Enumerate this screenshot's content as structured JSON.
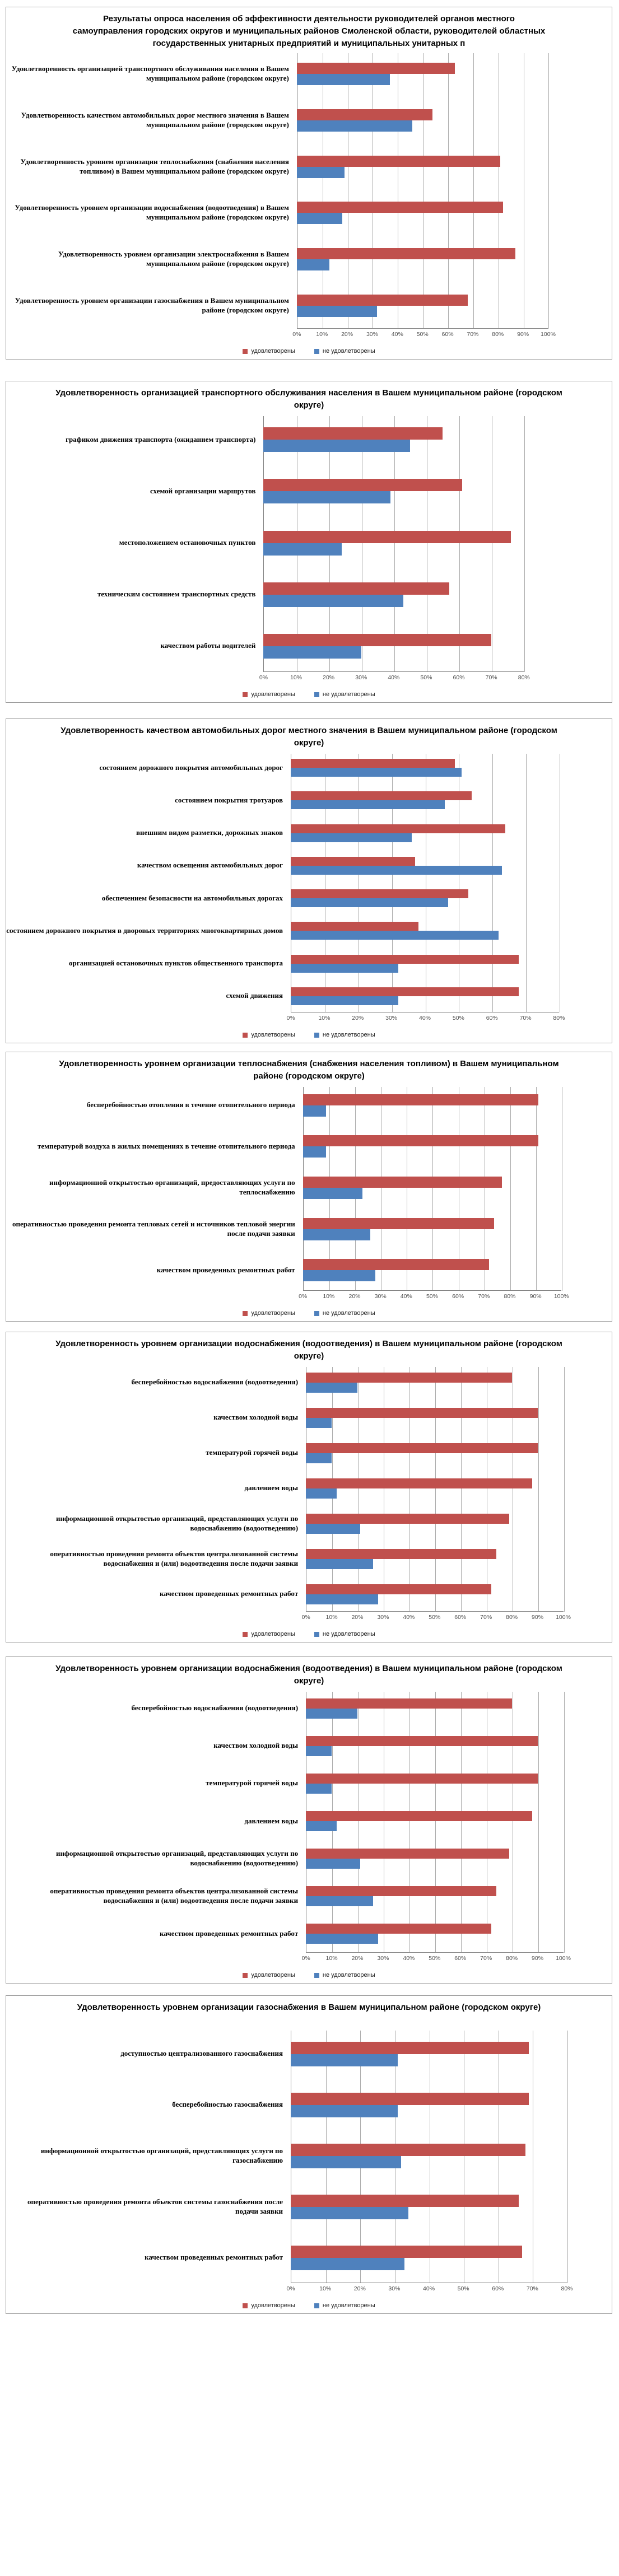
{
  "colors": {
    "satisfied": "#C0504D",
    "not_satisfied": "#4F81BD",
    "gridline": "#ABABAB",
    "axis": "#808080",
    "box_border": "#9A9A9A"
  },
  "chart_data": [
    {
      "type": "bar",
      "orientation": "horizontal",
      "title": "Результаты опроса населения об эффективности деятельности руководителей органов местного самоуправления городских округов и муниципальных районов Смоленской области, руководителей областных государственных унитарных предприятий и муниципальных унитарных п",
      "categories": [
        "Удовлетворенность  организацией транспортного  обслуживания населения в Вашем муниципальном районе (городском округе)",
        "Удовлетворенность  качеством автомобильных дорог местного значения в Вашем муниципальном районе (городском округе)",
        "Удовлетворенность уровнем организации теплоснабжения (снабжения населения топливом) в Вашем муниципальном районе (городском округе)",
        "Удовлетворенность уровнем организации водоснабжения (водоотведения) в Вашем муниципальном районе (городском округе)",
        "Удовлетворенность уровнем организации электроснабжения в Вашем муниципальном районе (городском округе)",
        "Удовлетворенность уровнем организации газоснабжения в Вашем муниципальном районе (городском округе)"
      ],
      "series": [
        {
          "name": "удовлетворены",
          "color": "#C0504D",
          "values": [
            63,
            54,
            81,
            82,
            87,
            68
          ]
        },
        {
          "name": "не удовлетворены",
          "color": "#4F81BD",
          "values": [
            37,
            46,
            19,
            18,
            13,
            32
          ]
        }
      ],
      "legend": [
        "удовлетворены",
        "не удовлетворены"
      ],
      "legend_position": "bottom",
      "grid": true,
      "xlim": [
        0,
        100
      ],
      "tick_labels": [
        "0%",
        "10%",
        "20%",
        "30%",
        "40%",
        "50%",
        "60%",
        "70%",
        "80%",
        "90%",
        "100%"
      ]
    },
    {
      "type": "bar",
      "orientation": "horizontal",
      "title": "Удовлетворенность организацией транспортного обслуживания населения в Вашем муниципальном районе (городском округе)",
      "categories": [
        "графиком движения транспорта (ожиданием транспорта)",
        "схемой организации маршрутов",
        "местоположением остановочных пунктов",
        "техническим состоянием транспортных средств",
        "качеством работы водителей"
      ],
      "series": [
        {
          "name": "удовлетворены",
          "color": "#C0504D",
          "values": [
            55,
            61,
            76,
            57,
            70
          ]
        },
        {
          "name": "не удовлетворены",
          "color": "#4F81BD",
          "values": [
            45,
            39,
            24,
            43,
            30
          ]
        }
      ],
      "legend": [
        "удовлетворены",
        "не удовлетворены"
      ],
      "legend_position": "bottom",
      "grid": true,
      "xlim": [
        0,
        80
      ],
      "tick_labels": [
        "0%",
        "10%",
        "20%",
        "30%",
        "40%",
        "50%",
        "60%",
        "70%",
        "80%"
      ]
    },
    {
      "type": "bar",
      "orientation": "horizontal",
      "title": "Удовлетворенность качеством автомобильных дорог местного значения в Вашем муниципальном районе (городском округе)",
      "categories": [
        "состоянием дорожного покрытия  автомобильных дорог",
        "состоянием покрытия  тротуаров",
        "внешним  видом разметки, дорожных  знаков",
        "качеством освещения автомобильных  дорог",
        "обеспечением безопасности на автомобильных  дорогах",
        "состоянием дорожного покрытия  в дворовых  территориях многоквартирных  домов",
        "организацией остановочных  пунктов  общественного транспорта",
        "схемой движения"
      ],
      "series": [
        {
          "name": "удовлетворены",
          "color": "#C0504D",
          "values": [
            49,
            54,
            64,
            37,
            53,
            38,
            68,
            68
          ]
        },
        {
          "name": "не удовлетворены",
          "color": "#4F81BD",
          "values": [
            51,
            46,
            36,
            63,
            47,
            62,
            32,
            32
          ]
        }
      ],
      "legend": [
        "удовлетворены",
        "не удовлетворены"
      ],
      "legend_position": "bottom",
      "grid": true,
      "xlim": [
        0,
        80
      ],
      "tick_labels": [
        "0%",
        "10%",
        "20%",
        "30%",
        "40%",
        "50%",
        "60%",
        "70%",
        "80%"
      ]
    },
    {
      "type": "bar",
      "orientation": "horizontal",
      "title": "Удовлетворенность уровнем организации теплоснабжения (снабжения населения топливом) в Вашем муниципальном районе (городском округе)",
      "categories": [
        "бесперебойностью отопления в течение отопительного периода",
        "температурой  воздуха в жилых  помещениях в течение отопительного периода",
        "информационной открытостью  организаций, предоставляющих услуги по теплоснабжению",
        "оперативностью  проведения ремонта тепловых  сетей и источников тепловой энергии после подачи заявки",
        "качеством проведенных ремонтных  работ"
      ],
      "series": [
        {
          "name": "удовлетворены",
          "color": "#C0504D",
          "values": [
            91,
            91,
            77,
            74,
            72
          ]
        },
        {
          "name": "не удовлетворены",
          "color": "#4F81BD",
          "values": [
            9,
            9,
            23,
            26,
            28
          ]
        }
      ],
      "legend": [
        "удовлетворены",
        "не удовлетворены"
      ],
      "legend_position": "bottom",
      "grid": true,
      "xlim": [
        0,
        100
      ],
      "tick_labels": [
        "0%",
        "10%",
        "20%",
        "30%",
        "40%",
        "50%",
        "60%",
        "70%",
        "80%",
        "90%",
        "100%"
      ]
    },
    {
      "type": "bar",
      "orientation": "horizontal",
      "title": "Удовлетворенность уровнем организации водоснабжения (водоотведения) в Вашем муниципальном районе (городском округе)",
      "categories": [
        "бесперебойностью водоснабжения (водоотведения)",
        "качеством холодной воды",
        "температурой  горячей воды",
        "давлением воды",
        "информационной открытостью  организаций, представляющих услуги по водоснабжению (водоотведению)",
        "оперативностью  проведения ремонта объектов централизованной системы водоснабжения и (или) водоотведения после подачи заявки",
        "качеством проведенных ремонтных  работ"
      ],
      "series": [
        {
          "name": "удовлетворены",
          "color": "#C0504D",
          "values": [
            80,
            90,
            90,
            88,
            79,
            74,
            72
          ]
        },
        {
          "name": "не удовлетворены",
          "color": "#4F81BD",
          "values": [
            20,
            10,
            10,
            12,
            21,
            26,
            28
          ]
        }
      ],
      "legend": [
        "удовлетворены",
        "не удовлетворены"
      ],
      "legend_position": "bottom",
      "grid": true,
      "xlim": [
        0,
        100
      ],
      "tick_labels": [
        "0%",
        "10%",
        "20%",
        "30%",
        "40%",
        "50%",
        "60%",
        "70%",
        "80%",
        "90%",
        "100%"
      ]
    },
    {
      "type": "bar",
      "orientation": "horizontal",
      "title": "Удовлетворенность уровнем организации водоснабжения (водоотведения) в Вашем муниципальном районе (городском округе)",
      "categories": [
        "бесперебойностью водоснабжения (водоотведения)",
        "качеством холодной воды",
        "температурой  горячей воды",
        "давлением воды",
        "информационной открытостью  организаций, представляющих услуги по водоснабжению (водоотведению)",
        "оперативностью  проведения ремонта объектов централизованной системы водоснабжения и (или) водоотведения после подачи заявки",
        "качеством проведенных ремонтных  работ"
      ],
      "series": [
        {
          "name": "удовлетворены",
          "color": "#C0504D",
          "values": [
            80,
            90,
            90,
            88,
            79,
            74,
            72
          ]
        },
        {
          "name": "не удовлетворены",
          "color": "#4F81BD",
          "values": [
            20,
            10,
            10,
            12,
            21,
            26,
            28
          ]
        }
      ],
      "legend": [
        "удовлетворены",
        "не удовлетворены"
      ],
      "legend_position": "bottom",
      "grid": true,
      "xlim": [
        0,
        100
      ],
      "tick_labels": [
        "0%",
        "10%",
        "20%",
        "30%",
        "40%",
        "50%",
        "60%",
        "70%",
        "80%",
        "90%",
        "100%"
      ]
    },
    {
      "type": "bar",
      "orientation": "horizontal",
      "title": "Удовлетворенность уровнем организации газоснабжения в Вашем муниципальном районе (городском округе)",
      "categories": [
        "доступностью централизованного  газоснабжения",
        "бесперебойностью газоснабжения",
        "информационной открытостью  организаций, представляющих услуги по газоснабжению",
        "оперативностью  проведения ремонта объектов системы газоснабжения после подачи заявки",
        "качеством проведенных ремонтных  работ"
      ],
      "series": [
        {
          "name": "удовлетворены",
          "color": "#C0504D",
          "values": [
            69,
            69,
            68,
            66,
            67
          ]
        },
        {
          "name": "не удовлетворены",
          "color": "#4F81BD",
          "values": [
            31,
            31,
            32,
            34,
            33
          ]
        }
      ],
      "legend": [
        "удовлетворены",
        "не удовлетворены"
      ],
      "legend_position": "bottom",
      "grid": true,
      "xlim": [
        0,
        80
      ],
      "tick_labels": [
        "0%",
        "10%",
        "20%",
        "30%",
        "40%",
        "50%",
        "60%",
        "70%",
        "80%"
      ]
    }
  ]
}
